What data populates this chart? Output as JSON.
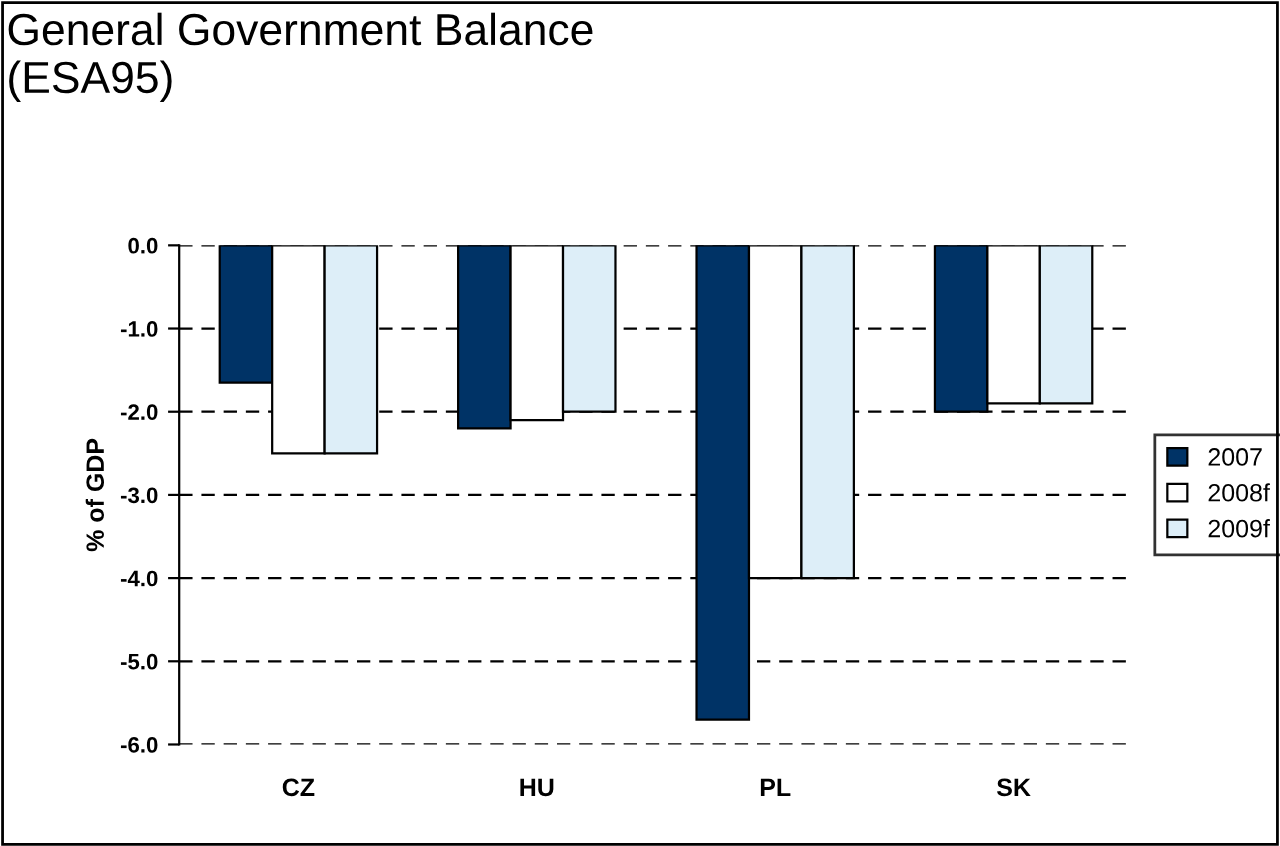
{
  "chart_data": {
    "type": "bar",
    "title": "General Government Balance\n(ESA95)",
    "ylabel": "% of GDP",
    "categories": [
      "CZ",
      "HU",
      "PL",
      "SK"
    ],
    "series": [
      {
        "name": "2007",
        "color": "#003366",
        "values": [
          -1.65,
          -2.2,
          -5.7,
          -2.0
        ]
      },
      {
        "name": "2008f",
        "color": "#ffffff",
        "values": [
          -2.5,
          -2.1,
          -4.0,
          -1.9
        ]
      },
      {
        "name": "2009f",
        "color": "#ddeef8",
        "values": [
          -2.5,
          -2.0,
          -4.0,
          -1.9
        ]
      }
    ],
    "ylim": [
      -6.0,
      0.0
    ],
    "yticks": [
      {
        "value": 0,
        "label": "0.0"
      },
      {
        "value": -1,
        "label": "-1.0"
      },
      {
        "value": -2,
        "label": "-2.0"
      },
      {
        "value": -3,
        "label": "-3.0"
      },
      {
        "value": -4,
        "label": "-4.0"
      },
      {
        "value": -5,
        "label": "-5.0"
      },
      {
        "value": -6,
        "label": "-6.0"
      }
    ],
    "grid": "y",
    "legend": "right",
    "line_style": "dashed"
  }
}
